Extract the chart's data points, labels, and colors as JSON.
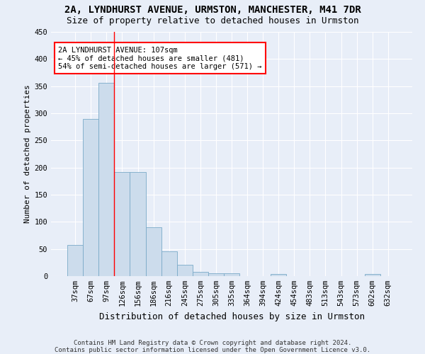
{
  "title1": "2A, LYNDHURST AVENUE, URMSTON, MANCHESTER, M41 7DR",
  "title2": "Size of property relative to detached houses in Urmston",
  "xlabel": "Distribution of detached houses by size in Urmston",
  "ylabel": "Number of detached properties",
  "footer1": "Contains HM Land Registry data © Crown copyright and database right 2024.",
  "footer2": "Contains public sector information licensed under the Open Government Licence v3.0.",
  "bin_labels": [
    "37sqm",
    "67sqm",
    "97sqm",
    "126sqm",
    "156sqm",
    "186sqm",
    "216sqm",
    "245sqm",
    "275sqm",
    "305sqm",
    "335sqm",
    "364sqm",
    "394sqm",
    "424sqm",
    "454sqm",
    "483sqm",
    "513sqm",
    "543sqm",
    "573sqm",
    "602sqm",
    "632sqm"
  ],
  "bar_values": [
    58,
    289,
    356,
    192,
    192,
    90,
    46,
    21,
    8,
    5,
    5,
    0,
    0,
    4,
    0,
    0,
    0,
    0,
    0,
    4,
    0
  ],
  "bar_color": "#ccdcec",
  "bar_edge_color": "#7aaac8",
  "red_line_x": 2.5,
  "annotation_text": "2A LYNDHURST AVENUE: 107sqm\n← 45% of detached houses are smaller (481)\n54% of semi-detached houses are larger (571) →",
  "annotation_box_color": "white",
  "annotation_box_edge": "red",
  "bg_color": "#e8eef8",
  "plot_bg_color": "#e8eef8",
  "ylim": [
    0,
    450
  ],
  "yticks": [
    0,
    50,
    100,
    150,
    200,
    250,
    300,
    350,
    400,
    450
  ],
  "title1_fontsize": 10,
  "title2_fontsize": 9,
  "ylabel_fontsize": 8,
  "xlabel_fontsize": 9,
  "tick_fontsize": 7.5,
  "footer_fontsize": 6.5,
  "annot_fontsize": 7.5
}
